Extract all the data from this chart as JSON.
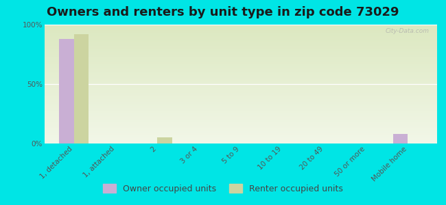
{
  "title": "Owners and renters by unit type in zip code 73029",
  "categories": [
    "1, detached",
    "1, attached",
    "2",
    "3 or 4",
    "5 to 9",
    "10 to 19",
    "20 to 49",
    "50 or more",
    "Mobile home"
  ],
  "owner_values": [
    88,
    0,
    0,
    0,
    0,
    0,
    0,
    0,
    8
  ],
  "renter_values": [
    92,
    0,
    5,
    0,
    0,
    0,
    0,
    0,
    0
  ],
  "owner_color": "#c9afd4",
  "renter_color": "#ccd4a0",
  "background_color": "#00e5e5",
  "plot_bg_top": "#dce8c0",
  "plot_bg_bottom": "#f2f7e8",
  "ylabel_ticks": [
    0,
    50,
    100
  ],
  "ytick_labels": [
    "0%",
    "50%",
    "100%"
  ],
  "bar_width": 0.35,
  "legend_owner": "Owner occupied units",
  "legend_renter": "Renter occupied units",
  "watermark": "City-Data.com",
  "title_fontsize": 13,
  "tick_fontsize": 7.5,
  "legend_fontsize": 9
}
